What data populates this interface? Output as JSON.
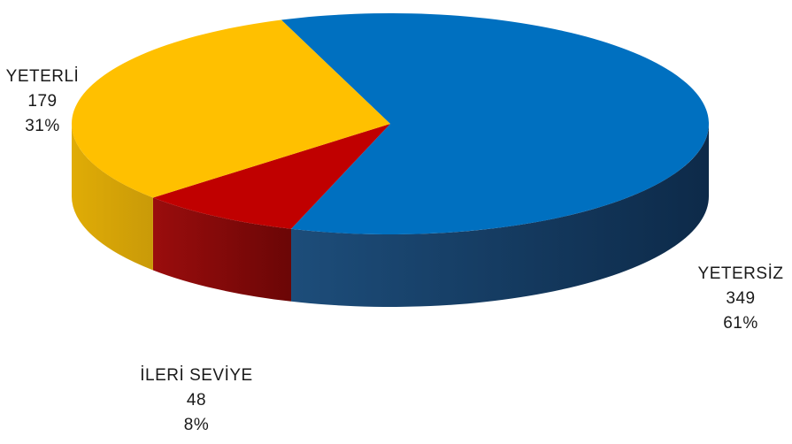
{
  "chart_data": {
    "type": "pie",
    "style": "3d",
    "categories": [
      "YETERSİZ",
      "İLERİ SEVİYE",
      "YETERLİ"
    ],
    "values": [
      349,
      48,
      179
    ],
    "percents": [
      "61%",
      "8%",
      "31%"
    ],
    "colors": [
      "#0070C0",
      "#C00000",
      "#FFC000"
    ],
    "side_colors": [
      "#173f66",
      "#7a0a0a",
      "#c99a08"
    ],
    "legend": "none",
    "data_labels": "outside"
  }
}
